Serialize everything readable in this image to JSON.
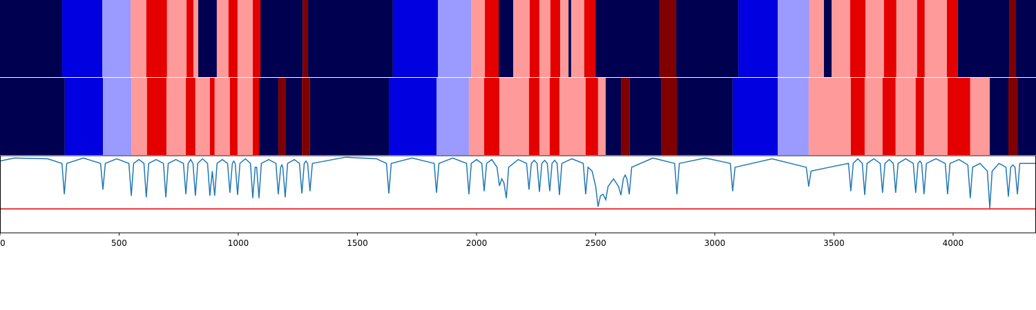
{
  "chart_data": {
    "type": "segmentation",
    "palette": [
      "#000050",
      "#0000e0",
      "#9a9aff",
      "#ff9a9a",
      "#e50000",
      "#800000"
    ],
    "rows": [
      {
        "bounds": [
          0,
          261,
          429,
          548,
          614,
          701,
          783,
          812,
          832,
          910,
          959,
          997,
          1061,
          1093,
          1270,
          1293,
          1649,
          1838,
          1977,
          2035,
          2093,
          2154,
          2223,
          2264,
          2310,
          2351,
          2386,
          2397,
          2452,
          2499,
          2768,
          2838,
          3099,
          3264,
          3397,
          3458,
          3490,
          3568,
          3632,
          3710,
          3762,
          3849,
          3881,
          3974,
          4020,
          4235,
          4264,
          4348
        ],
        "classes": [
          0,
          1,
          2,
          3,
          4,
          3,
          4,
          3,
          0,
          3,
          4,
          3,
          4,
          0,
          5,
          0,
          1,
          2,
          3,
          4,
          0,
          3,
          4,
          3,
          4,
          3,
          0,
          3,
          4,
          0,
          5,
          0,
          1,
          2,
          3,
          0,
          3,
          4,
          3,
          4,
          3,
          4,
          3,
          4,
          0,
          5,
          0
        ]
      },
      {
        "bounds": [
          0,
          272,
          432,
          551,
          617,
          699,
          780,
          820,
          881,
          901,
          965,
          997,
          1061,
          1087,
          1168,
          1200,
          1267,
          1301,
          1632,
          1832,
          1968,
          2032,
          2096,
          2220,
          2264,
          2307,
          2348,
          2458,
          2510,
          2542,
          2606,
          2643,
          2774,
          2841,
          3075,
          3264,
          3394,
          3571,
          3629,
          3704,
          3759,
          3843,
          3878,
          3977,
          4072,
          4154,
          4232,
          4270,
          4348
        ],
        "classes": [
          0,
          1,
          2,
          3,
          4,
          3,
          4,
          3,
          4,
          3,
          4,
          3,
          4,
          0,
          5,
          0,
          5,
          0,
          1,
          2,
          3,
          4,
          3,
          4,
          3,
          4,
          3,
          4,
          3,
          0,
          5,
          0,
          5,
          0,
          1,
          2,
          3,
          4,
          3,
          4,
          3,
          4,
          3,
          4,
          3,
          0,
          5,
          0
        ]
      }
    ],
    "x": [
      0,
      60,
      200,
      260,
      270,
      280,
      350,
      422,
      432,
      442,
      490,
      541,
      551,
      561,
      583,
      604,
      614,
      624,
      655,
      686,
      696,
      706,
      738,
      770,
      780,
      790,
      800,
      810,
      820,
      830,
      850,
      871,
      881,
      891,
      901,
      911,
      933,
      955,
      965,
      975,
      981,
      987,
      997,
      1007,
      1030,
      1051,
      1061,
      1071,
      1077,
      1087,
      1097,
      1128,
      1158,
      1168,
      1178,
      1183,
      1187,
      1197,
      1207,
      1235,
      1257,
      1267,
      1277,
      1284,
      1291,
      1301,
      1311,
      1450,
      1580,
      1622,
      1632,
      1642,
      1730,
      1822,
      1832,
      1842,
      1900,
      1958,
      1968,
      1978,
      2000,
      2022,
      2032,
      2042,
      2064,
      2086,
      2096,
      2106,
      2115,
      2125,
      2135,
      2175,
      2210,
      2220,
      2230,
      2242,
      2254,
      2264,
      2274,
      2286,
      2297,
      2307,
      2317,
      2328,
      2338,
      2348,
      2358,
      2400,
      2448,
      2458,
      2468,
      2485,
      2500,
      2510,
      2520,
      2531,
      2542,
      2552,
      2575,
      2596,
      2606,
      2616,
      2624,
      2631,
      2641,
      2651,
      2740,
      2831,
      2841,
      2851,
      2960,
      3065,
      3075,
      3085,
      3240,
      3384,
      3394,
      3404,
      3480,
      3561,
      3571,
      3581,
      3600,
      3619,
      3629,
      3639,
      3667,
      3694,
      3704,
      3714,
      3732,
      3749,
      3759,
      3769,
      3801,
      3833,
      3843,
      3853,
      3861,
      3868,
      3878,
      3888,
      3928,
      3967,
      3977,
      3987,
      4025,
      4062,
      4072,
      4082,
      4113,
      4144,
      4154,
      4164,
      4193,
      4222,
      4232,
      4242,
      4251,
      4260,
      4270,
      4280,
      4348
    ],
    "series": [
      {
        "color": "#1f77b4",
        "values": [
          0.93,
          0.97,
          0.96,
          0.9,
          0.5,
          0.9,
          0.97,
          0.9,
          0.56,
          0.9,
          0.96,
          0.9,
          0.48,
          0.9,
          0.95,
          0.9,
          0.46,
          0.9,
          0.95,
          0.9,
          0.46,
          0.9,
          0.95,
          0.9,
          0.5,
          0.9,
          0.95,
          0.9,
          0.48,
          0.9,
          0.96,
          0.9,
          0.48,
          0.8,
          0.48,
          0.9,
          0.95,
          0.9,
          0.52,
          0.9,
          0.93,
          0.9,
          0.49,
          0.9,
          0.96,
          0.9,
          0.45,
          0.85,
          0.85,
          0.45,
          0.9,
          0.95,
          0.9,
          0.5,
          0.85,
          0.88,
          0.85,
          0.46,
          0.9,
          0.95,
          0.9,
          0.51,
          0.9,
          0.93,
          0.9,
          0.54,
          0.9,
          0.98,
          0.96,
          0.9,
          0.51,
          0.9,
          0.97,
          0.9,
          0.52,
          0.9,
          0.97,
          0.9,
          0.5,
          0.9,
          0.95,
          0.9,
          0.54,
          0.9,
          0.95,
          0.85,
          0.61,
          0.7,
          0.65,
          0.45,
          0.85,
          0.95,
          0.9,
          0.56,
          0.9,
          0.94,
          0.9,
          0.53,
          0.9,
          0.94,
          0.9,
          0.54,
          0.9,
          0.94,
          0.9,
          0.49,
          0.9,
          0.96,
          0.9,
          0.5,
          0.85,
          0.8,
          0.6,
          0.34,
          0.48,
          0.5,
          0.43,
          0.6,
          0.7,
          0.6,
          0.49,
          0.7,
          0.75,
          0.7,
          0.5,
          0.85,
          0.97,
          0.9,
          0.5,
          0.9,
          0.97,
          0.9,
          0.54,
          0.85,
          0.96,
          0.85,
          0.6,
          0.8,
          0.85,
          0.9,
          0.54,
          0.9,
          0.96,
          0.9,
          0.49,
          0.9,
          0.96,
          0.9,
          0.52,
          0.9,
          0.95,
          0.9,
          0.52,
          0.9,
          0.96,
          0.9,
          0.52,
          0.9,
          0.93,
          0.9,
          0.5,
          0.9,
          0.96,
          0.9,
          0.5,
          0.9,
          0.95,
          0.88,
          0.45,
          0.85,
          0.9,
          0.8,
          0.32,
          0.8,
          0.9,
          0.85,
          0.47,
          0.85,
          0.88,
          0.85,
          0.5,
          0.9,
          0.9
        ]
      }
    ],
    "threshold": 0.31,
    "threshold_color": "#e50000",
    "xlim": [
      0,
      4348
    ],
    "ylim": [
      0,
      1
    ],
    "xticks": [
      0,
      500,
      1000,
      1500,
      2000,
      2500,
      3000,
      3500,
      4000
    ]
  }
}
